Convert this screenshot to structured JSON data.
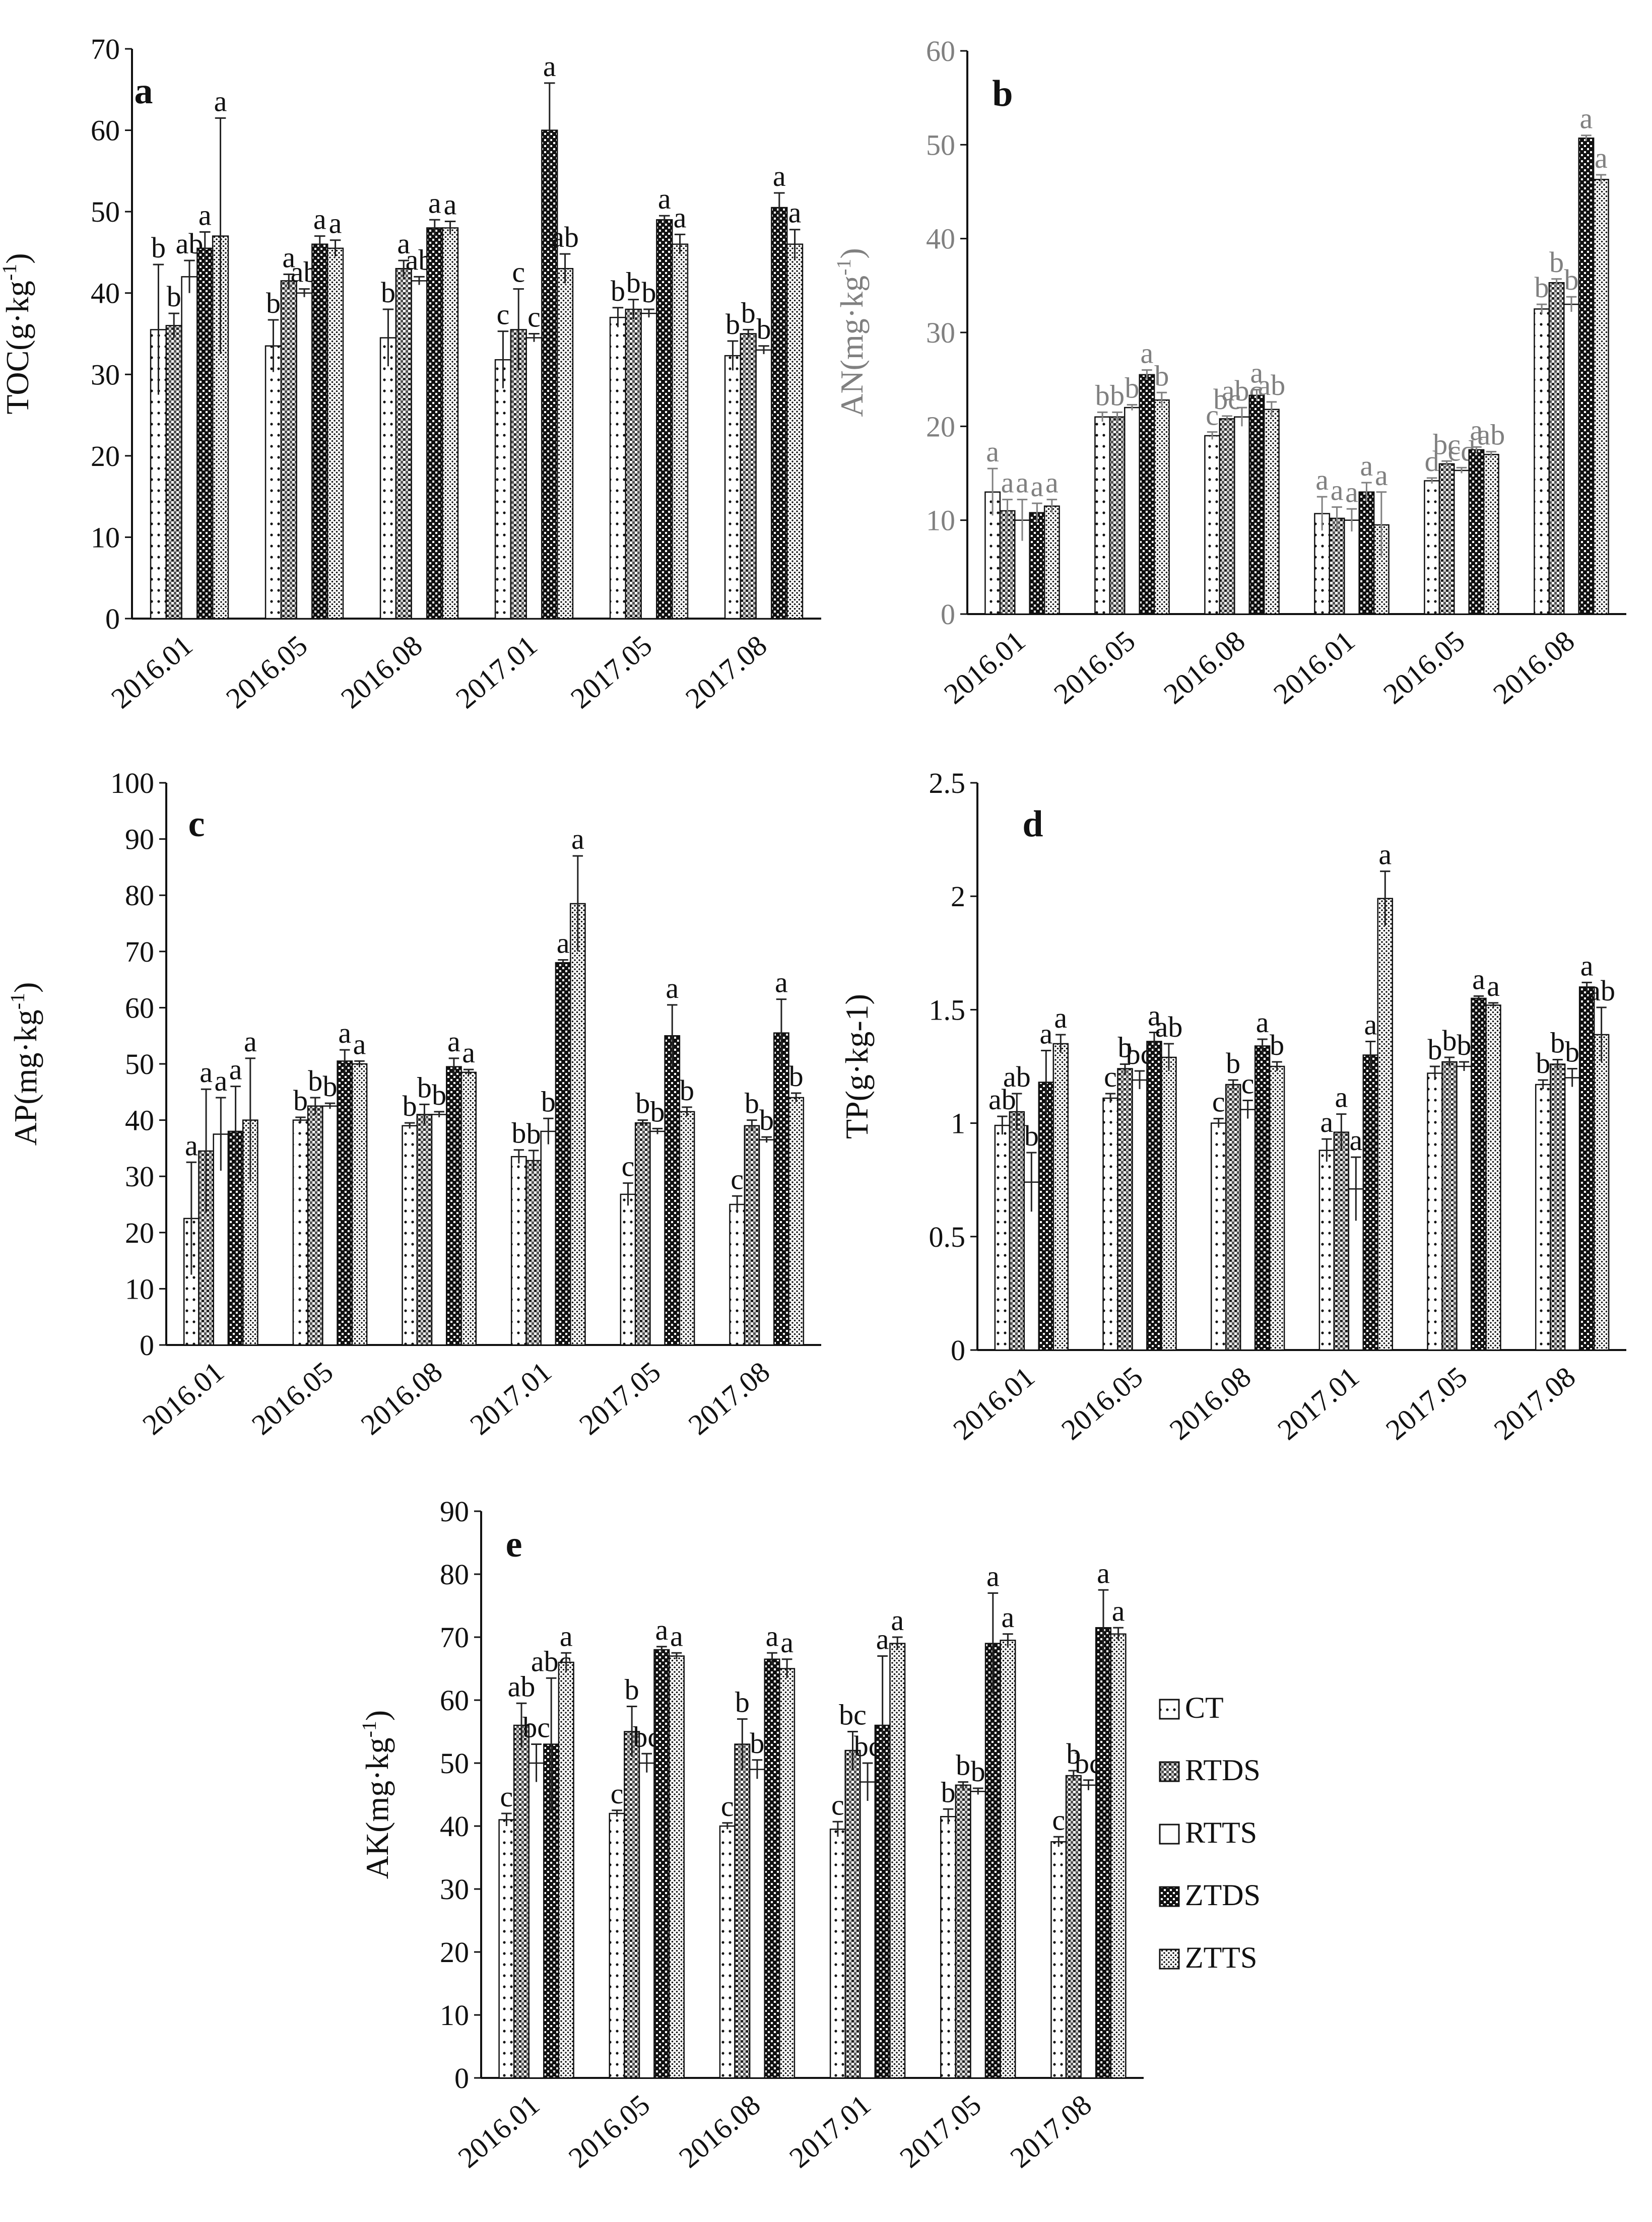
{
  "figure": {
    "legend": [
      {
        "name": "CT",
        "pattern": "dots-sparse"
      },
      {
        "name": "RTDS",
        "pattern": "grid"
      },
      {
        "name": "RTTS",
        "pattern": "plain"
      },
      {
        "name": "ZTDS",
        "pattern": "dark-check"
      },
      {
        "name": "ZTTS",
        "pattern": "dots-dense"
      }
    ],
    "colors": {
      "bar_outline": "#111111",
      "axis": "#111111",
      "panel_b_text": "#808080"
    }
  },
  "chart_data": [
    {
      "panel": "a",
      "type": "bar",
      "ylabel": "TOC(g·kg",
      "ylabel_sup": "-1",
      "ylabel_close": ")",
      "ylim": [
        0,
        70
      ],
      "yticks": [
        0,
        10,
        20,
        30,
        40,
        50,
        60,
        70
      ],
      "categories": [
        "2016.01",
        "2016.05",
        "2016.08",
        "2017.01",
        "2017.05",
        "2017.08"
      ],
      "series": [
        {
          "name": "CT",
          "values": [
            35.5,
            33.5,
            34.5,
            31.8,
            37.0,
            32.3
          ],
          "errors": [
            8.0,
            3.2,
            3.5,
            3.5,
            1.2,
            1.8
          ],
          "letters": [
            "b",
            "b",
            "b",
            "c",
            "b",
            "b"
          ]
        },
        {
          "name": "RTDS",
          "values": [
            36.0,
            41.5,
            43.0,
            35.5,
            38.0,
            35.0
          ],
          "errors": [
            1.5,
            0.8,
            1.0,
            5.0,
            1.2,
            0.5
          ],
          "letters": [
            "b",
            "a",
            "a",
            "c",
            "b",
            "b"
          ]
        },
        {
          "name": "RTTS",
          "values": [
            42.0,
            40.0,
            41.5,
            34.5,
            37.5,
            33.0
          ],
          "errors": [
            2.0,
            0.5,
            0.5,
            0.5,
            0.5,
            0.5
          ],
          "letters": [
            "ab",
            "ab",
            "ab",
            "c",
            "b",
            "b"
          ]
        },
        {
          "name": "ZTDS",
          "values": [
            45.5,
            46.0,
            48.0,
            60.0,
            49.0,
            50.5
          ],
          "errors": [
            2.0,
            1.0,
            1.0,
            5.8,
            0.5,
            1.8
          ],
          "letters": [
            "a",
            "a",
            "a",
            "a",
            "a",
            "a"
          ]
        },
        {
          "name": "ZTTS",
          "values": [
            47.0,
            45.5,
            48.0,
            43.0,
            46.0,
            46.0
          ],
          "errors": [
            14.5,
            1.0,
            0.8,
            1.8,
            1.2,
            1.8
          ],
          "letters": [
            "a",
            "a",
            "a",
            "ab",
            "a",
            "a"
          ]
        }
      ]
    },
    {
      "panel": "b",
      "type": "bar",
      "text_color": "gray",
      "ylabel": "AN(mg·kg",
      "ylabel_sup": "-1",
      "ylabel_close": ")",
      "ylim": [
        0,
        60
      ],
      "yticks": [
        0,
        10,
        20,
        30,
        40,
        50,
        60
      ],
      "categories": [
        "2016.01",
        "2016.05",
        "2016.08",
        "2016.01",
        "2016.05",
        "2016.08"
      ],
      "series": [
        {
          "name": "CT",
          "values": [
            13.0,
            21.0,
            19.0,
            10.7,
            14.2,
            32.5
          ],
          "errors": [
            2.5,
            0.5,
            0.4,
            1.8,
            0.3,
            0.5
          ],
          "letters": [
            "a",
            "b",
            "c",
            "a",
            "d",
            "b"
          ]
        },
        {
          "name": "RTDS",
          "values": [
            11.0,
            21.0,
            20.8,
            10.2,
            16.0,
            35.3
          ],
          "errors": [
            1.2,
            0.5,
            0.3,
            1.2,
            0.3,
            0.4
          ],
          "letters": [
            "a",
            "b",
            "bc",
            "a",
            "bc",
            "b"
          ]
        },
        {
          "name": "RTTS",
          "values": [
            10.0,
            22.0,
            21.0,
            10.0,
            15.3,
            33.0
          ],
          "errors": [
            2.2,
            0.3,
            1.0,
            1.2,
            0.3,
            0.8
          ],
          "letters": [
            "a",
            "b",
            "abc",
            "a",
            "cd",
            "b"
          ]
        },
        {
          "name": "ZTDS",
          "values": [
            10.8,
            25.5,
            23.3,
            13.0,
            17.5,
            50.7
          ],
          "errors": [
            1.0,
            0.5,
            0.6,
            1.0,
            0.3,
            0.3
          ],
          "letters": [
            "a",
            "a",
            "a",
            "a",
            "a",
            "a"
          ]
        },
        {
          "name": "ZTTS",
          "values": [
            11.5,
            22.8,
            21.8,
            9.5,
            17.0,
            46.3
          ],
          "errors": [
            0.7,
            0.8,
            0.8,
            3.5,
            0.3,
            0.5
          ],
          "letters": [
            "a",
            "b",
            "ab",
            "a",
            "ab",
            "a"
          ]
        }
      ]
    },
    {
      "panel": "c",
      "type": "bar",
      "ylabel": "AP(mg·kg",
      "ylabel_sup": "-1",
      "ylabel_close": ")",
      "ylim": [
        0,
        100
      ],
      "yticks": [
        0,
        10,
        20,
        30,
        40,
        50,
        60,
        70,
        80,
        90,
        100
      ],
      "categories": [
        "2016.01",
        "2016.05",
        "2016.08",
        "2017.01",
        "2017.05",
        "2017.08"
      ],
      "series": [
        {
          "name": "CT",
          "values": [
            22.5,
            40.0,
            39.0,
            33.5,
            26.8,
            25.0
          ],
          "errors": [
            10.0,
            0.5,
            0.5,
            1.2,
            2.0,
            1.5
          ],
          "letters": [
            "a",
            "b",
            "b",
            "b",
            "c",
            "c"
          ]
        },
        {
          "name": "RTDS",
          "values": [
            34.5,
            42.5,
            41.0,
            32.8,
            39.5,
            39.0
          ],
          "errors": [
            11.0,
            1.5,
            1.8,
            1.8,
            0.5,
            1.0
          ],
          "letters": [
            "a",
            "b",
            "b",
            "b",
            "b",
            "b"
          ]
        },
        {
          "name": "RTTS",
          "values": [
            37.5,
            42.5,
            41.0,
            38.0,
            38.0,
            36.5
          ],
          "errors": [
            6.5,
            0.5,
            0.5,
            2.3,
            0.5,
            0.5
          ],
          "letters": [
            "a",
            "b",
            "b",
            "b",
            "b",
            "b"
          ]
        },
        {
          "name": "ZTDS",
          "values": [
            38.0,
            50.5,
            49.5,
            68.0,
            55.0,
            55.5
          ],
          "errors": [
            8.0,
            2.0,
            1.5,
            0.5,
            5.5,
            6.0
          ],
          "letters": [
            "a",
            "a",
            "a",
            "a",
            "a",
            "a"
          ]
        },
        {
          "name": "ZTTS",
          "values": [
            40.0,
            50.0,
            48.5,
            78.5,
            41.5,
            44.0
          ],
          "errors": [
            11.0,
            0.5,
            0.5,
            8.5,
            0.8,
            0.8
          ],
          "letters": [
            "a",
            "a",
            "a",
            "a",
            "b",
            "b"
          ]
        }
      ]
    },
    {
      "panel": "d",
      "type": "bar",
      "ylabel": "TP(g·kg-1)",
      "ylim": [
        0,
        2.5
      ],
      "yticks": [
        0,
        0.5,
        1,
        1.5,
        2,
        2.5
      ],
      "categories": [
        "2016.01",
        "2016.05",
        "2016.08",
        "2017.01",
        "2017.05",
        "2017.08"
      ],
      "series": [
        {
          "name": "CT",
          "values": [
            0.99,
            1.11,
            1.0,
            0.88,
            1.22,
            1.17
          ],
          "errors": [
            0.04,
            0.02,
            0.02,
            0.05,
            0.03,
            0.02
          ],
          "letters": [
            "ab",
            "c",
            "c",
            "a",
            "b",
            "b"
          ]
        },
        {
          "name": "RTDS",
          "values": [
            1.05,
            1.24,
            1.17,
            0.96,
            1.27,
            1.26
          ],
          "errors": [
            0.08,
            0.02,
            0.02,
            0.08,
            0.02,
            0.02
          ],
          "letters": [
            "ab",
            "b",
            "b",
            "a",
            "b",
            "b"
          ]
        },
        {
          "name": "RTTS",
          "values": [
            0.74,
            1.19,
            1.06,
            0.71,
            1.25,
            1.2
          ],
          "errors": [
            0.13,
            0.04,
            0.04,
            0.14,
            0.02,
            0.04
          ],
          "letters": [
            "b",
            "bc",
            "c",
            "a",
            "b",
            "b"
          ]
        },
        {
          "name": "ZTDS",
          "values": [
            1.18,
            1.36,
            1.34,
            1.3,
            1.55,
            1.6
          ],
          "errors": [
            0.14,
            0.04,
            0.03,
            0.06,
            0.01,
            0.02
          ],
          "letters": [
            "a",
            "a",
            "a",
            "a",
            "a",
            "a"
          ]
        },
        {
          "name": "ZTTS",
          "values": [
            1.35,
            1.29,
            1.25,
            1.99,
            1.52,
            1.39
          ],
          "errors": [
            0.04,
            0.06,
            0.02,
            0.12,
            0.01,
            0.12
          ],
          "letters": [
            "a",
            "ab",
            "b",
            "a",
            "a",
            "ab"
          ]
        }
      ]
    },
    {
      "panel": "e",
      "type": "bar",
      "ylabel": "AK(mg·kg",
      "ylabel_sup": "-1",
      "ylabel_close": ")",
      "ylim": [
        0,
        90
      ],
      "yticks": [
        0,
        10,
        20,
        30,
        40,
        50,
        60,
        70,
        80,
        90
      ],
      "categories": [
        "2016.01",
        "2016.05",
        "2016.08",
        "2017.01",
        "2017.05",
        "2017.08"
      ],
      "series": [
        {
          "name": "CT",
          "values": [
            41.0,
            42.0,
            40.0,
            39.5,
            41.5,
            37.5
          ],
          "errors": [
            1.0,
            0.5,
            0.5,
            1.2,
            1.2,
            0.8
          ],
          "letters": [
            "c",
            "c",
            "c",
            "c",
            "b",
            "c"
          ]
        },
        {
          "name": "RTDS",
          "values": [
            56.0,
            55.0,
            53.0,
            52.0,
            46.5,
            48.0
          ],
          "errors": [
            3.5,
            4.0,
            4.0,
            3.0,
            0.5,
            0.8
          ],
          "letters": [
            "ab",
            "b",
            "b",
            "bc",
            "b",
            "b"
          ]
        },
        {
          "name": "RTTS",
          "values": [
            50.0,
            50.0,
            49.0,
            47.0,
            45.5,
            46.5
          ],
          "errors": [
            3.0,
            1.5,
            1.5,
            3.0,
            0.5,
            0.8
          ],
          "letters": [
            "bc",
            "bc",
            "b",
            "bc",
            "b",
            "bc"
          ]
        },
        {
          "name": "ZTDS",
          "values": [
            53.0,
            68.0,
            66.5,
            56.0,
            69.0,
            71.5
          ],
          "errors": [
            10.5,
            0.5,
            1.0,
            11.0,
            8.0,
            6.0
          ],
          "letters": [
            "abc",
            "a",
            "a",
            "a",
            "a",
            "a"
          ]
        },
        {
          "name": "ZTTS",
          "values": [
            66.0,
            67.0,
            65.0,
            69.0,
            69.5,
            70.5
          ],
          "errors": [
            1.5,
            0.5,
            1.5,
            1.0,
            1.0,
            1.0
          ],
          "letters": [
            "a",
            "a",
            "a",
            "a",
            "a",
            "a"
          ]
        }
      ]
    }
  ]
}
